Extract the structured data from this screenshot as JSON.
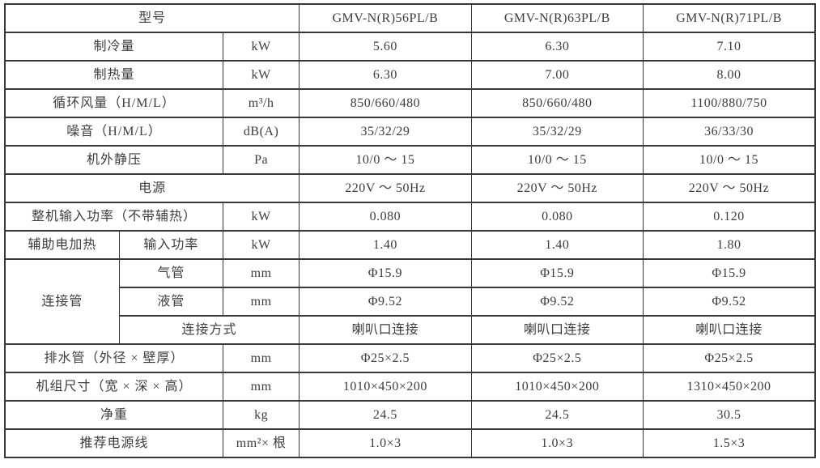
{
  "table": {
    "header": {
      "label": "型号",
      "models": [
        "GMV-N(R)56PL/B",
        "GMV-N(R)63PL/B",
        "GMV-N(R)71PL/B"
      ]
    },
    "rows": [
      {
        "label": "制冷量",
        "unit": "kW",
        "values": [
          "5.60",
          "6.30",
          "7.10"
        ]
      },
      {
        "label": "制热量",
        "unit": "kW",
        "values": [
          "6.30",
          "7.00",
          "8.00"
        ]
      },
      {
        "label": "循环风量（H/M/L）",
        "unit": "m³/h",
        "values": [
          "850/660/480",
          "850/660/480",
          "1100/880/750"
        ]
      },
      {
        "label": "噪音（H/M/L）",
        "unit": "dB(A)",
        "values": [
          "35/32/29",
          "35/32/29",
          "36/33/30"
        ]
      },
      {
        "label": "机外静压",
        "unit": "Pa",
        "values": [
          "10/0 ～ 15",
          "10/0 ～ 15",
          "10/0 ～ 15"
        ]
      },
      {
        "label": "电源",
        "values": [
          "220V ～ 50Hz",
          "220V ～ 50Hz",
          "220V ～ 50Hz"
        ]
      },
      {
        "label": "整机输入功率（不带辅热）",
        "unit": "kW",
        "values": [
          "0.080",
          "0.080",
          "0.120"
        ]
      },
      {
        "group": "辅助电加热",
        "label": "输入功率",
        "unit": "kW",
        "values": [
          "1.40",
          "1.40",
          "1.80"
        ]
      },
      {
        "group": "连接管",
        "label": "气管",
        "unit": "mm",
        "values": [
          "Φ15.9",
          "Φ15.9",
          "Φ15.9"
        ]
      },
      {
        "label": "液管",
        "unit": "mm",
        "values": [
          "Φ9.52",
          "Φ9.52",
          "Φ9.52"
        ]
      },
      {
        "label": "连接方式",
        "values": [
          "喇叭口连接",
          "喇叭口连接",
          "喇叭口连接"
        ]
      },
      {
        "label": "排水管（外径 × 壁厚）",
        "unit": "mm",
        "values": [
          "Φ25×2.5",
          "Φ25×2.5",
          "Φ25×2.5"
        ]
      },
      {
        "label": "机组尺寸（宽 × 深 × 高）",
        "unit": "mm",
        "values": [
          "1010×450×200",
          "1010×450×200",
          "1310×450×200"
        ]
      },
      {
        "label": "净重",
        "unit": "kg",
        "values": [
          "24.5",
          "24.5",
          "30.5"
        ]
      },
      {
        "label": "推荐电源线",
        "unit": "mm²× 根",
        "values": [
          "1.0×3",
          "1.0×3",
          "1.5×3"
        ]
      }
    ]
  }
}
